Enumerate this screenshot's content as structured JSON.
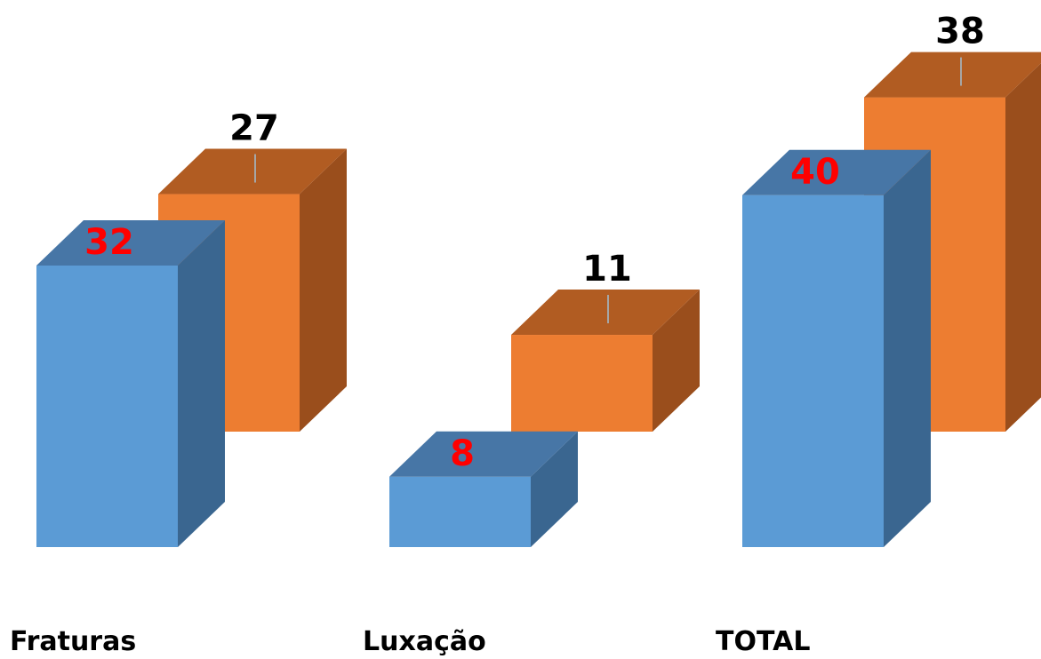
{
  "chart_data": {
    "type": "bar",
    "style": "3d-clustered-column",
    "categories": [
      "Fraturas",
      "Luxação",
      "TOTAL"
    ],
    "series": [
      {
        "values": [
          32,
          8,
          40
        ],
        "color": "#5b9bd5",
        "side_color": "#3a6690",
        "top_color": "#4776a6",
        "label_color": "#ff0000"
      },
      {
        "values": [
          27,
          11,
          38
        ],
        "color": "#ed7d31",
        "side_color": "#9a4e1c",
        "top_color": "#b15c22",
        "label_color": "#000000"
      }
    ],
    "ylim": [
      0,
      40
    ],
    "grid": false,
    "legend": "none",
    "data_labels": true
  }
}
